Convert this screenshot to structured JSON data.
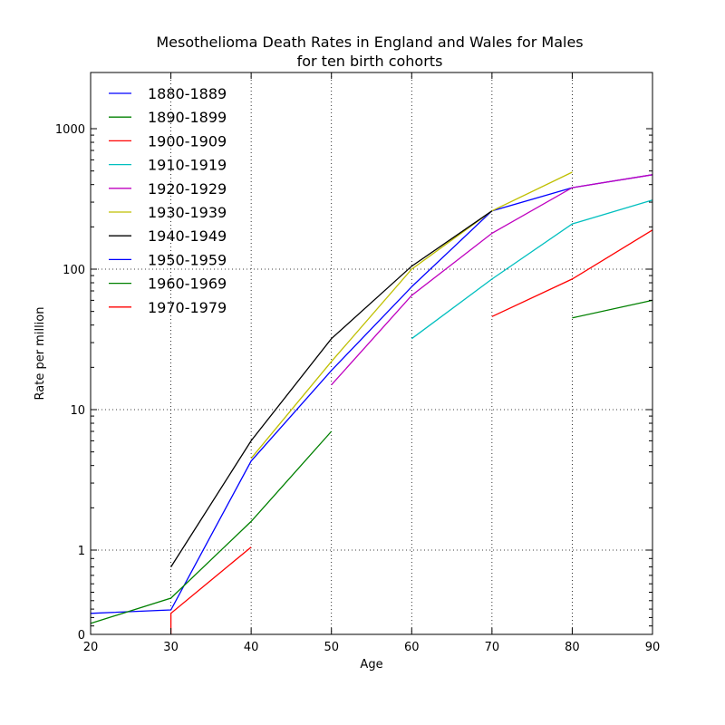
{
  "chart_data": {
    "type": "line",
    "title_lines": [
      "Mesothelioma Death Rates in England and Wales for Males",
      "for ten birth cohorts"
    ],
    "xlabel": "Age",
    "ylabel": "Rate per million",
    "xlim": [
      20,
      90
    ],
    "yscale": "symlog",
    "ylim": [
      0,
      1000
    ],
    "xticks": [
      20,
      30,
      40,
      50,
      60,
      70,
      80,
      90
    ],
    "yticks": [
      0,
      1,
      10,
      100,
      1000
    ],
    "ytick_labels": [
      "0",
      "1",
      "10",
      "100",
      "1000"
    ],
    "grid": true,
    "legend_position": "upper-left",
    "series": [
      {
        "name": "1880-1889",
        "color": "#0000ff",
        "points": [
          [
            60,
            75
          ],
          [
            70,
            260
          ],
          [
            80,
            380
          ],
          [
            90,
            470
          ]
        ]
      },
      {
        "name": "1890-1899",
        "color": "#008000",
        "points": [
          [
            80,
            45
          ],
          [
            90,
            60
          ]
        ]
      },
      {
        "name": "1900-1909",
        "color": "#ff0000",
        "points": [
          [
            70,
            46
          ],
          [
            80,
            85
          ],
          [
            90,
            190
          ]
        ]
      },
      {
        "name": "1910-1919",
        "color": "#00bfbf",
        "points": [
          [
            60,
            32
          ],
          [
            70,
            85
          ],
          [
            80,
            210
          ],
          [
            90,
            310
          ]
        ]
      },
      {
        "name": "1920-1929",
        "color": "#bf00bf",
        "points": [
          [
            50,
            15
          ],
          [
            60,
            65
          ],
          [
            70,
            180
          ],
          [
            80,
            380
          ],
          [
            90,
            470
          ]
        ]
      },
      {
        "name": "1930-1939",
        "color": "#bfbf00",
        "points": [
          [
            40,
            4.5
          ],
          [
            50,
            22
          ],
          [
            60,
            100
          ],
          [
            70,
            260
          ],
          [
            80,
            490
          ]
        ]
      },
      {
        "name": "1940-1949",
        "color": "#000000",
        "points": [
          [
            30,
            0.8
          ],
          [
            40,
            6
          ],
          [
            50,
            32
          ],
          [
            60,
            105
          ],
          [
            70,
            260
          ]
        ]
      },
      {
        "name": "1950-1959",
        "color": "#0000ff",
        "points": [
          [
            20,
            0.25
          ],
          [
            30,
            0.29
          ],
          [
            40,
            4.3
          ],
          [
            50,
            19
          ],
          [
            60,
            75
          ]
        ]
      },
      {
        "name": "1960-1969",
        "color": "#008000",
        "points": [
          [
            20,
            0.13
          ],
          [
            30,
            0.43
          ],
          [
            40,
            1.6
          ],
          [
            50,
            7
          ]
        ]
      },
      {
        "name": "1970-1979",
        "color": "#ff0000",
        "points": [
          [
            30,
            0
          ],
          [
            30,
            0.25
          ],
          [
            40,
            1.05
          ]
        ]
      }
    ]
  }
}
